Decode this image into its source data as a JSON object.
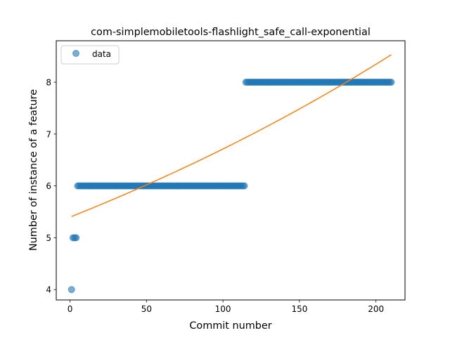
{
  "chart_data": {
    "type": "scatter",
    "title": "com-simplemobiletools-flashlight_safe_call-exponential",
    "xlabel": "Commit number",
    "ylabel": "Number of instance of a feature",
    "xlim": [
      -9,
      219
    ],
    "ylim": [
      3.8,
      8.8
    ],
    "xticks": [
      0,
      50,
      100,
      150,
      200
    ],
    "yticks": [
      4,
      5,
      6,
      7,
      8
    ],
    "grid": false,
    "legend": {
      "placement": "top-left",
      "entries": [
        "data"
      ]
    },
    "colors": {
      "data": "#1f77b4",
      "fit": "#ff7f0e"
    },
    "series": [
      {
        "name": "data",
        "kind": "points",
        "segments": [
          {
            "x_start": 1,
            "x_end": 1,
            "y": 4
          },
          {
            "x_start": 2,
            "x_end": 4,
            "y": 5
          },
          {
            "x_start": 5,
            "x_end": 114,
            "y": 6
          },
          {
            "x_start": 115,
            "x_end": 210,
            "y": 8
          }
        ]
      },
      {
        "kind": "line",
        "x": [
          1,
          210
        ],
        "y": [
          5.41,
          8.53
        ]
      }
    ]
  }
}
